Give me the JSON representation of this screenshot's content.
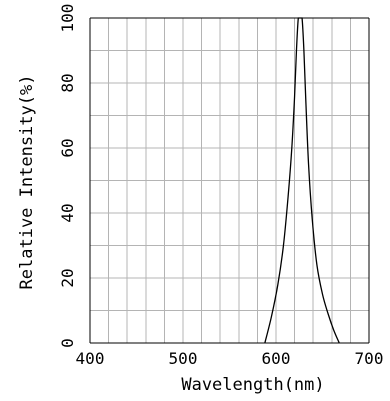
{
  "chart_data": {
    "type": "line",
    "xlabel": "Wavelength(nm)",
    "ylabel": "Relative Intensity(%)",
    "xlim": [
      400,
      700
    ],
    "ylim": [
      0,
      100
    ],
    "x_ticks": [
      400,
      500,
      600,
      700
    ],
    "y_ticks": [
      0,
      20,
      40,
      60,
      80,
      100
    ],
    "x_minor_step": 20,
    "y_minor_step": 10,
    "grid": true,
    "series": [
      {
        "color": "#000000",
        "x": [
          588,
          595,
          602,
          608,
          613,
          617,
          620,
          622,
          624,
          626,
          628,
          630,
          632,
          635,
          639,
          644,
          650,
          656,
          662,
          668
        ],
        "y": [
          0,
          8,
          18,
          30,
          45,
          60,
          76,
          90,
          100,
          100,
          100,
          90,
          75,
          55,
          38,
          24,
          15,
          9,
          4,
          0
        ]
      }
    ]
  }
}
